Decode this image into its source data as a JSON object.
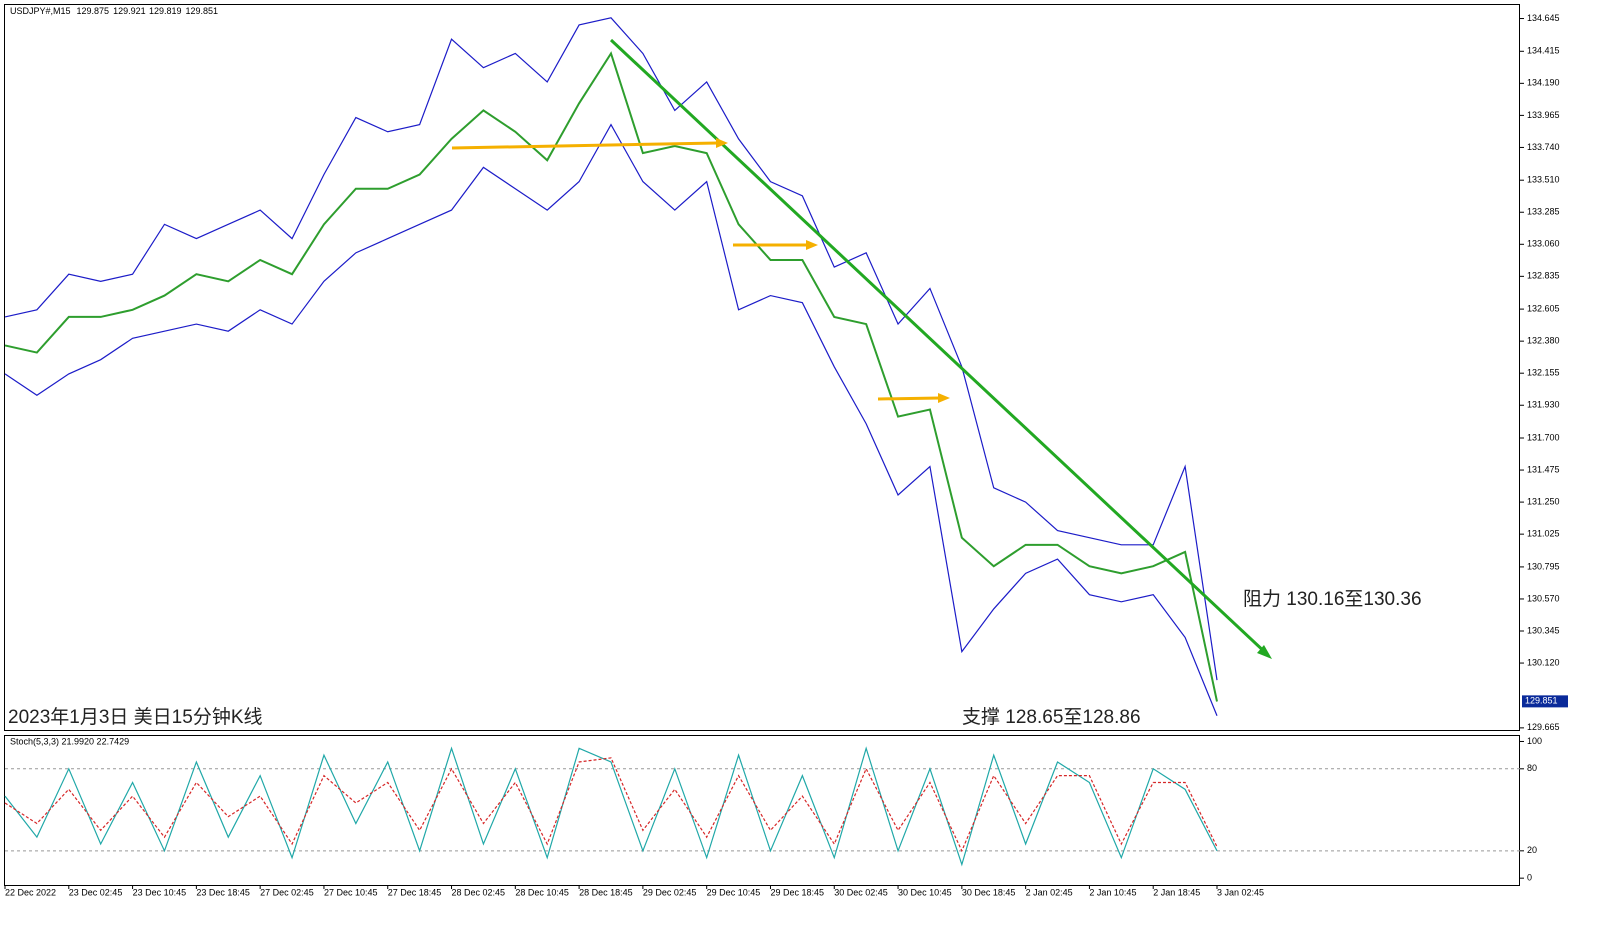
{
  "header": {
    "symbol": "USDJPY#,M15",
    "ohlc": [
      129.875,
      129.921,
      129.819,
      129.851
    ]
  },
  "annotations": {
    "caption": "2023年1月3日 美日15分钟K线",
    "resistance": "阻力 130.16至130.36",
    "support": "支撑 128.65至128.86"
  },
  "chart_data": [
    {
      "type": "line",
      "xlim": [
        0,
        95
      ],
      "ylim": [
        129.65,
        134.74
      ],
      "x": [
        0,
        2,
        4,
        6,
        8,
        10,
        12,
        14,
        16,
        18,
        20,
        22,
        24,
        26,
        28,
        30,
        32,
        34,
        36,
        38,
        40,
        42,
        44,
        46,
        48,
        50,
        52,
        54,
        56,
        58,
        60,
        62,
        64,
        66,
        68,
        70,
        72,
        74,
        76
      ],
      "yticks": [
        134.645,
        134.415,
        {
          "value": 134.19,
          "label": "134.190"
        },
        133.965,
        {
          "value": 133.74,
          "label": "133.740"
        },
        {
          "value": 133.51,
          "label": "133.510"
        },
        133.285,
        {
          "value": 133.06,
          "label": "133.060"
        },
        132.835,
        132.605,
        {
          "value": 132.38,
          "label": "132.380"
        },
        132.155,
        {
          "value": 131.93,
          "label": "131.930"
        },
        {
          "value": 131.7,
          "label": "131.700"
        },
        131.475,
        {
          "value": 131.25,
          "label": "131.250"
        },
        131.025,
        130.795,
        {
          "value": 130.57,
          "label": "130.570"
        },
        130.345,
        {
          "value": 130.12,
          "label": "130.120"
        },
        129.665
      ],
      "current_price": 129.851,
      "series": [
        {
          "name": "Close",
          "color": "#2e9e2e",
          "values": [
            132.35,
            132.3,
            132.55,
            132.55,
            132.6,
            132.7,
            132.85,
            132.8,
            132.95,
            132.85,
            133.2,
            133.45,
            133.45,
            133.55,
            133.8,
            134.0,
            133.85,
            133.65,
            134.05,
            134.4,
            133.7,
            133.75,
            133.7,
            133.2,
            132.95,
            132.95,
            132.55,
            132.5,
            131.85,
            131.9,
            131.0,
            130.8,
            130.95,
            130.95,
            130.8,
            130.75,
            130.8,
            130.9,
            129.85
          ]
        },
        {
          "name": "Upper",
          "color": "#1c1cc8",
          "values": [
            132.55,
            132.6,
            132.85,
            132.8,
            132.85,
            133.2,
            133.1,
            133.2,
            133.3,
            133.1,
            133.55,
            133.95,
            133.85,
            133.9,
            134.5,
            134.3,
            134.4,
            134.2,
            134.6,
            134.65,
            134.4,
            134.0,
            134.2,
            133.8,
            133.5,
            133.4,
            132.9,
            133.0,
            132.5,
            132.75,
            132.2,
            131.35,
            131.25,
            131.05,
            131.0,
            130.95,
            130.95,
            131.5,
            130.0
          ]
        },
        {
          "name": "Lower",
          "color": "#1c1cc8",
          "values": [
            132.15,
            132.0,
            132.15,
            132.25,
            132.4,
            132.45,
            132.5,
            132.45,
            132.6,
            132.5,
            132.8,
            133.0,
            133.1,
            133.2,
            133.3,
            133.6,
            133.45,
            133.3,
            133.5,
            133.9,
            133.5,
            133.3,
            133.5,
            132.6,
            132.7,
            132.65,
            132.2,
            131.8,
            131.3,
            131.5,
            130.2,
            130.5,
            130.75,
            130.85,
            130.6,
            130.55,
            130.6,
            130.3,
            129.75
          ]
        }
      ]
    },
    {
      "type": "line",
      "title": "Stoch(5,3,3) 21.9920 22.7429",
      "xlim": [
        0,
        95
      ],
      "ylim": [
        -5,
        104
      ],
      "x": [
        0,
        2,
        4,
        6,
        8,
        10,
        12,
        14,
        16,
        18,
        20,
        22,
        24,
        26,
        28,
        30,
        32,
        34,
        36,
        38,
        40,
        42,
        44,
        46,
        48,
        50,
        52,
        54,
        56,
        58,
        60,
        62,
        64,
        66,
        68,
        70,
        72,
        74,
        76
      ],
      "yticks": [
        0,
        20,
        80,
        100
      ],
      "grid_levels": [
        20,
        80
      ],
      "xticks": [
        {
          "value": 0,
          "label": "22 Dec 2022"
        },
        {
          "value": 4,
          "label": "23 Dec 02:45"
        },
        {
          "value": 8,
          "label": "23 Dec 10:45"
        },
        {
          "value": 12,
          "label": "23 Dec 18:45"
        },
        {
          "value": 16,
          "label": "27 Dec 02:45"
        },
        {
          "value": 20,
          "label": "27 Dec 10:45"
        },
        {
          "value": 24,
          "label": "27 Dec 18:45"
        },
        {
          "value": 28,
          "label": "28 Dec 02:45"
        },
        {
          "value": 32,
          "label": "28 Dec 10:45"
        },
        {
          "value": 36,
          "label": "28 Dec 18:45"
        },
        {
          "value": 40,
          "label": "29 Dec 02:45"
        },
        {
          "value": 44,
          "label": "29 Dec 10:45"
        },
        {
          "value": 48,
          "label": "29 Dec 18:45"
        },
        {
          "value": 52,
          "label": "30 Dec 02:45"
        },
        {
          "value": 56,
          "label": "30 Dec 10:45"
        },
        {
          "value": 60,
          "label": "30 Dec 18:45"
        },
        {
          "value": 64,
          "label": "2 Jan 02:45"
        },
        {
          "value": 68,
          "label": "2 Jan 10:45"
        },
        {
          "value": 72,
          "label": "2 Jan 18:45"
        },
        {
          "value": 76,
          "label": "3 Jan 02:45"
        }
      ],
      "series": [
        {
          "name": "Main",
          "color": "#20a8a8",
          "dashed": false,
          "values": [
            60,
            30,
            80,
            25,
            70,
            20,
            85,
            30,
            75,
            15,
            90,
            40,
            85,
            20,
            95,
            25,
            80,
            15,
            95,
            85,
            20,
            80,
            15,
            90,
            20,
            75,
            15,
            95,
            20,
            80,
            10,
            90,
            25,
            85,
            70,
            15,
            80,
            65,
            20
          ]
        },
        {
          "name": "Signal",
          "color": "#d62728",
          "dashed": true,
          "values": [
            55,
            40,
            65,
            35,
            60,
            30,
            70,
            45,
            60,
            25,
            75,
            55,
            70,
            35,
            80,
            40,
            70,
            25,
            85,
            88,
            35,
            65,
            30,
            75,
            35,
            60,
            25,
            80,
            35,
            70,
            20,
            75,
            40,
            75,
            75,
            25,
            70,
            70,
            23
          ]
        }
      ]
    }
  ]
}
